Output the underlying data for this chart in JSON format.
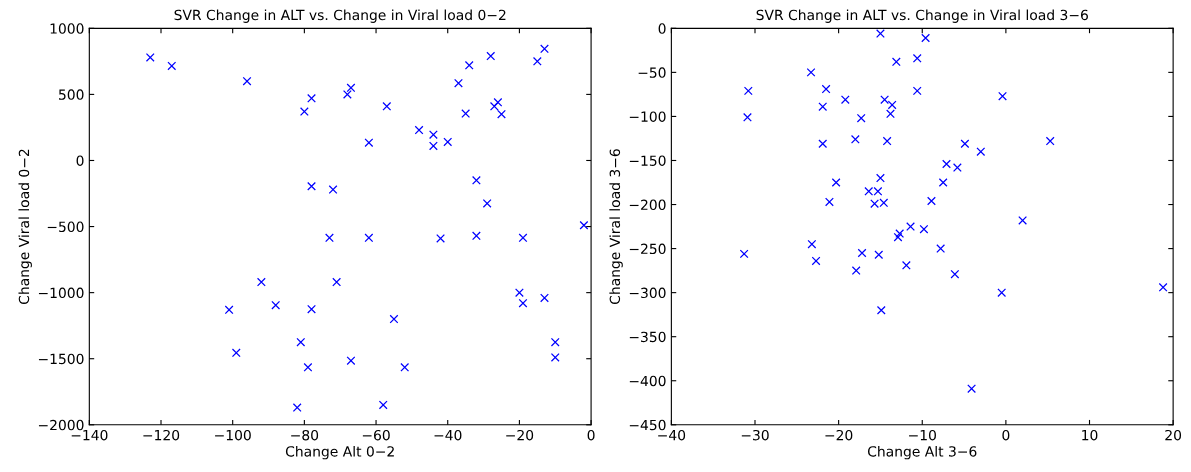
{
  "chart_data": [
    {
      "type": "scatter",
      "title": "SVR Change in ALT vs. Change in Viral load 0−2",
      "xlabel": "Change Alt 0−2",
      "ylabel": "Change Viral load 0−2",
      "marker": "cross",
      "grid": false,
      "legend": false,
      "xlim": [
        -140,
        0
      ],
      "xticks": [
        {
          "value": -140,
          "label": "−140"
        },
        {
          "value": -120,
          "label": "−120"
        },
        {
          "value": -100,
          "label": "−100"
        },
        {
          "value": -80,
          "label": "−80"
        },
        {
          "value": -60,
          "label": "−60"
        },
        {
          "value": -40,
          "label": "−40"
        },
        {
          "value": -20,
          "label": "−20"
        },
        0
      ],
      "ylim": [
        -2000,
        1000
      ],
      "yticks": [
        {
          "value": -2000,
          "label": "−2000"
        },
        {
          "value": -1500,
          "label": "−1500"
        },
        {
          "value": -1000,
          "label": "−1000"
        },
        {
          "value": -500,
          "label": "−500"
        },
        0,
        500,
        1000
      ],
      "series": [
        {
          "color": "#0000ff",
          "x": [
            -123,
            -117,
            -96,
            -80,
            -78,
            -68,
            -67,
            -57,
            -62,
            -48,
            -44,
            -44,
            -40,
            -37,
            -34,
            -35,
            -28,
            -27,
            -26,
            -25,
            -15,
            -13,
            -78,
            -72,
            -32,
            -29,
            -2,
            -73,
            -62,
            -42,
            -32,
            -19,
            -101,
            -99,
            -92,
            -88,
            -81,
            -79,
            -78,
            -71,
            -67,
            -55,
            -52,
            -82,
            -58,
            -20,
            -19,
            -13,
            -10,
            -10
          ],
          "values": [
            780,
            715,
            600,
            370,
            470,
            500,
            550,
            410,
            135,
            230,
            195,
            110,
            140,
            585,
            720,
            355,
            790,
            410,
            440,
            350,
            750,
            845,
            -195,
            -220,
            -150,
            -325,
            -490,
            -585,
            -585,
            -590,
            -570,
            -585,
            -1130,
            -1455,
            -920,
            -1095,
            -1375,
            -1565,
            -1125,
            -920,
            -1515,
            -1200,
            -1565,
            -1870,
            -1850,
            -1000,
            -1080,
            -1040,
            -1375,
            -1490
          ]
        }
      ]
    },
    {
      "type": "scatter",
      "title": "SVR Change in ALT vs. Change in Viral load 3−6",
      "xlabel": "Change Alt 3−6",
      "ylabel": "Change Viral load 3−6",
      "marker": "cross",
      "grid": false,
      "legend": false,
      "xlim": [
        -40,
        20
      ],
      "xticks": [
        {
          "value": -40,
          "label": "−40"
        },
        {
          "value": -30,
          "label": "−30"
        },
        {
          "value": -20,
          "label": "−20"
        },
        {
          "value": -10,
          "label": "−10"
        },
        0,
        10,
        20
      ],
      "ylim": [
        -450,
        0
      ],
      "yticks": [
        {
          "value": -450,
          "label": "−450"
        },
        {
          "value": -400,
          "label": "−400"
        },
        {
          "value": -350,
          "label": "−350"
        },
        {
          "value": -300,
          "label": "−300"
        },
        {
          "value": -250,
          "label": "−250"
        },
        {
          "value": -200,
          "label": "−200"
        },
        {
          "value": -150,
          "label": "−150"
        },
        {
          "value": -100,
          "label": "−100"
        },
        {
          "value": -50,
          "label": "−50"
        },
        0
      ],
      "series": [
        {
          "color": "#0000ff",
          "x": [
            -30.8,
            -30.9,
            -23.3,
            -21.5,
            -21.9,
            -19.2,
            -17.3,
            -15.0,
            -13.1,
            -10.6,
            -9.6,
            -10.6,
            -14.5,
            -13.6,
            -13.8,
            -21.9,
            -18.0,
            -14.2,
            -4.9,
            -3.0,
            -0.4,
            5.3,
            -7.1,
            -5.8,
            -20.3,
            -7.5,
            -15.0,
            -16.4,
            -15.3,
            -21.1,
            -15.7,
            -14.6,
            -8.9,
            2.0,
            -12.7,
            -11.4,
            -9.8,
            -31.3,
            -23.2,
            -22.7,
            -17.9,
            -17.2,
            -15.2,
            -12.9,
            -11.9,
            -7.8,
            -6.1,
            -14.9,
            -0.5,
            18.8,
            -4.1
          ],
          "values": [
            -71,
            -101,
            -50,
            -69,
            -89,
            -81,
            -102,
            -6,
            -38,
            -34,
            -11,
            -71,
            -81,
            -87,
            -97,
            -131,
            -126,
            -128,
            -131,
            -140,
            -77,
            -128,
            -154,
            -158,
            -175,
            -175,
            -170,
            -185,
            -185,
            -197,
            -199,
            -198,
            -196,
            -218,
            -233,
            -225,
            -228,
            -256,
            -245,
            -264,
            -275,
            -255,
            -257,
            -237,
            -269,
            -250,
            -279,
            -320,
            -300,
            -294,
            -409
          ]
        }
      ]
    }
  ]
}
